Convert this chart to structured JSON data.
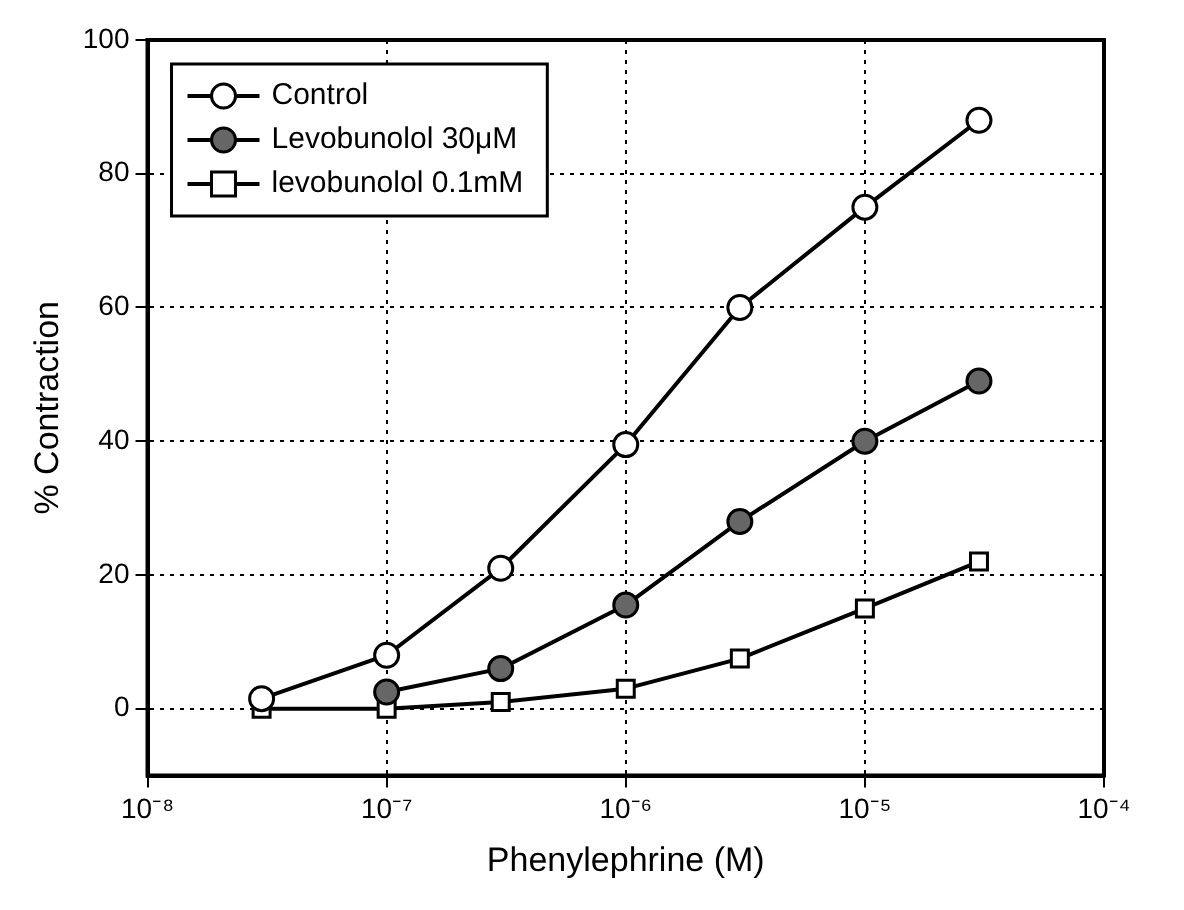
{
  "chart_data": {
    "type": "line",
    "xlabel": "Phenylephrine (M)",
    "ylabel": "% Contraction",
    "log": "x",
    "x": [
      3e-08,
      1e-07,
      3e-07,
      1e-06,
      3e-06,
      1e-05,
      3e-05
    ],
    "xlim": [
      1e-08,
      0.0001
    ],
    "xticks": [
      {
        "value": 1e-08,
        "label": "10⁻⁸"
      },
      {
        "value": 1e-07,
        "label": "10⁻⁷"
      },
      {
        "value": 1e-06,
        "label": "10⁻⁶"
      },
      {
        "value": 1e-05,
        "label": "10⁻⁵"
      },
      {
        "value": 0.0001,
        "label": "10⁻⁴"
      }
    ],
    "ylim": [
      -10,
      100
    ],
    "yticks": [
      0,
      20,
      40,
      60,
      80,
      100
    ],
    "grid": true,
    "legend": "top left",
    "line_style": "solid",
    "series": [
      {
        "name": "Control",
        "color": "#ffffff",
        "marker": "circle",
        "values": [
          1.5,
          8,
          21,
          39.5,
          60,
          75,
          88
        ]
      },
      {
        "name": "Levobunolol 30μM",
        "color": "#666666",
        "marker": "circle",
        "values": [
          null,
          2.5,
          6,
          15.5,
          28,
          40,
          49
        ]
      },
      {
        "name": "levobunolol 0.1mM",
        "color": "#ffffff",
        "marker": "square",
        "values": [
          0,
          0,
          1,
          3,
          7.5,
          15,
          22
        ]
      }
    ]
  }
}
